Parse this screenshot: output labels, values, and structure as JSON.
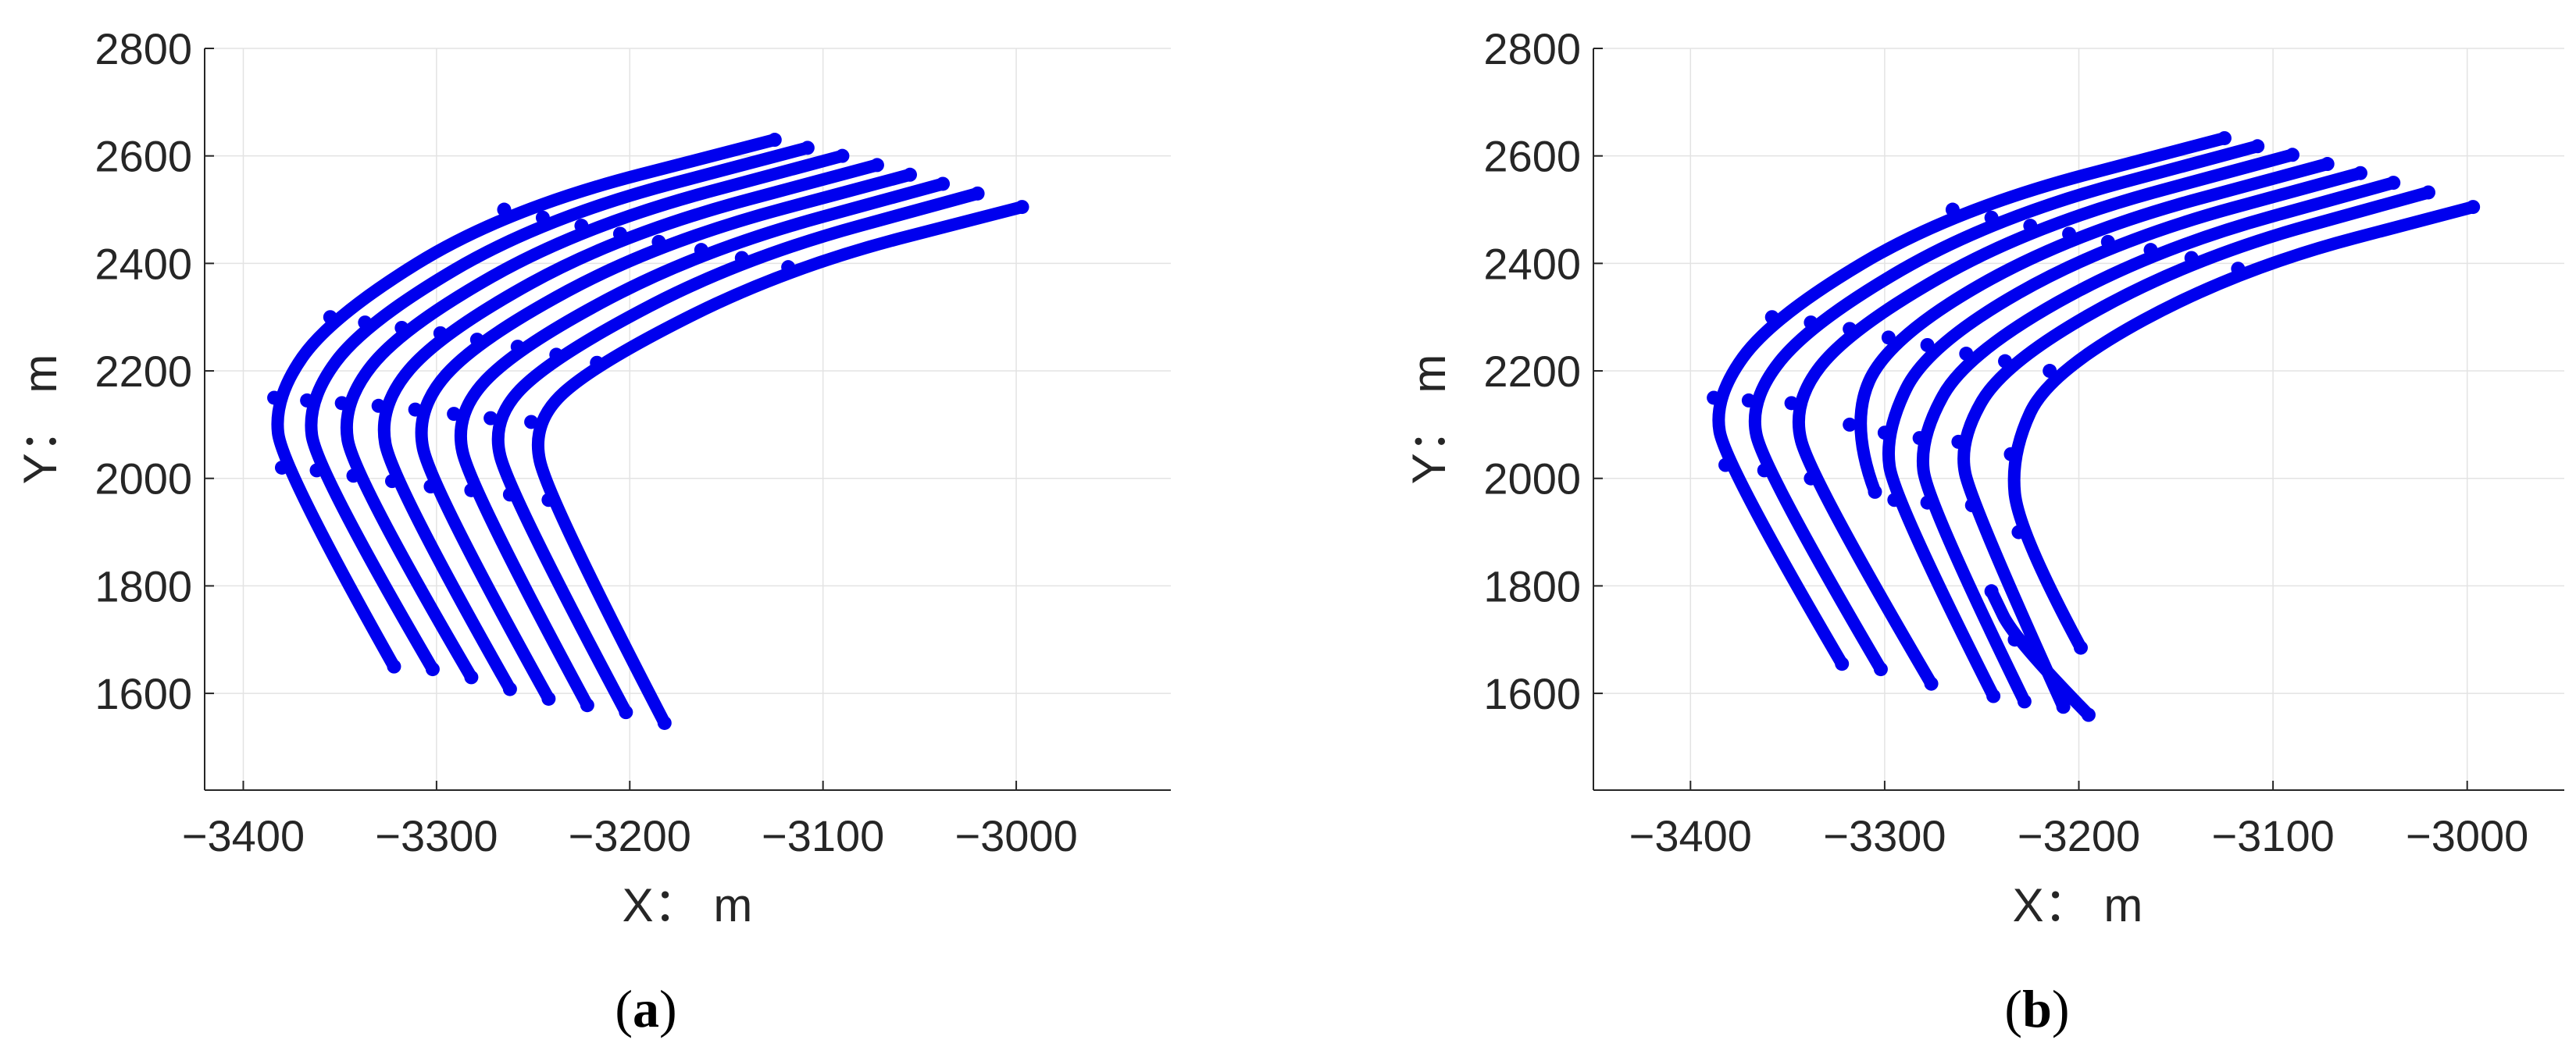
{
  "panels": [
    {
      "caption_letter": "a",
      "xlabel": "X： m",
      "ylabel": "Y： m"
    },
    {
      "caption_letter": "b",
      "xlabel": "X： m",
      "ylabel": "Y： m"
    }
  ],
  "colors": {
    "series": "#0000ee",
    "grid": "#e3e3e3",
    "axis": "#262626"
  },
  "chart_data": [
    {
      "type": "scatter",
      "title": "",
      "xlabel": "X： m",
      "ylabel": "Y： m",
      "xlim": [
        -3420,
        -2920
      ],
      "ylim": [
        1420,
        2800
      ],
      "xticks": [
        -3400,
        -3300,
        -3200,
        -3100,
        -3000
      ],
      "yticks": [
        1600,
        1800,
        2000,
        2200,
        2400,
        2600,
        2800
      ],
      "grid": true,
      "series": [
        {
          "x": [
            -3322,
            -3380,
            -3384,
            -3355,
            -3265,
            -3125
          ],
          "y": [
            1650,
            2020,
            2150,
            2300,
            2500,
            2630
          ]
        },
        {
          "x": [
            -3302,
            -3362,
            -3367,
            -3337,
            -3245,
            -3108
          ],
          "y": [
            1645,
            2015,
            2145,
            2290,
            2485,
            2615
          ]
        },
        {
          "x": [
            -3282,
            -3343,
            -3349,
            -3318,
            -3225,
            -3090
          ],
          "y": [
            1630,
            2005,
            2140,
            2280,
            2470,
            2600
          ]
        },
        {
          "x": [
            -3262,
            -3323,
            -3330,
            -3298,
            -3205,
            -3072
          ],
          "y": [
            1608,
            1995,
            2135,
            2270,
            2455,
            2583
          ]
        },
        {
          "x": [
            -3242,
            -3303,
            -3311,
            -3279,
            -3185,
            -3055
          ],
          "y": [
            1590,
            1985,
            2128,
            2258,
            2440,
            2565
          ]
        },
        {
          "x": [
            -3222,
            -3282,
            -3291,
            -3258,
            -3163,
            -3038
          ],
          "y": [
            1578,
            1978,
            2120,
            2245,
            2425,
            2548
          ]
        },
        {
          "x": [
            -3202,
            -3262,
            -3272,
            -3238,
            -3142,
            -3020
          ],
          "y": [
            1565,
            1970,
            2112,
            2230,
            2410,
            2530
          ]
        },
        {
          "x": [
            -3182,
            -3242,
            -3251,
            -3217,
            -3118,
            -2997
          ],
          "y": [
            1545,
            1960,
            2105,
            2215,
            2393,
            2505
          ]
        }
      ]
    },
    {
      "type": "scatter",
      "title": "",
      "xlabel": "X： m",
      "ylabel": "Y： m",
      "xlim": [
        -3450,
        -2950
      ],
      "ylim": [
        1420,
        2800
      ],
      "xticks": [
        -3400,
        -3300,
        -3200,
        -3100,
        -3000
      ],
      "yticks": [
        1600,
        1800,
        2000,
        2200,
        2400,
        2600,
        2800
      ],
      "grid": true,
      "series": [
        {
          "x": [
            -3322,
            -3382,
            -3388,
            -3358,
            -3265,
            -3125
          ],
          "y": [
            1655,
            2025,
            2150,
            2300,
            2500,
            2633
          ]
        },
        {
          "x": [
            -3302,
            -3362,
            -3370,
            -3338,
            -3245,
            -3108
          ],
          "y": [
            1645,
            2015,
            2145,
            2290,
            2485,
            2618
          ]
        },
        {
          "x": [
            -3276,
            -3338,
            -3348,
            -3318,
            -3225,
            -3090
          ],
          "y": [
            1618,
            2000,
            2140,
            2278,
            2470,
            2602
          ]
        },
        {
          "x": [
            -3305,
            -3318,
            -3298,
            -3205,
            -3072
          ],
          "y": [
            1975,
            2100,
            2262,
            2455,
            2585
          ]
        },
        {
          "x": [
            -3244,
            -3295,
            -3300,
            -3278,
            -3185,
            -3055
          ],
          "y": [
            1595,
            1960,
            2085,
            2248,
            2440,
            2568
          ]
        },
        {
          "x": [
            -3228,
            -3278,
            -3282,
            -3258,
            -3163,
            -3038
          ],
          "y": [
            1585,
            1955,
            2075,
            2232,
            2425,
            2550
          ]
        },
        {
          "x": [
            -3208,
            -3255,
            -3262,
            -3238,
            -3142,
            -3020
          ],
          "y": [
            1575,
            1950,
            2068,
            2218,
            2410,
            2532
          ]
        },
        {
          "x": [
            -3199,
            -3231,
            -3235,
            -3215,
            -3118,
            -2997
          ],
          "y": [
            1685,
            1900,
            2045,
            2200,
            2390,
            2505
          ]
        },
        {
          "x": [
            -3195,
            -3233,
            -3245
          ],
          "y": [
            1560,
            1700,
            1790
          ]
        }
      ]
    }
  ]
}
